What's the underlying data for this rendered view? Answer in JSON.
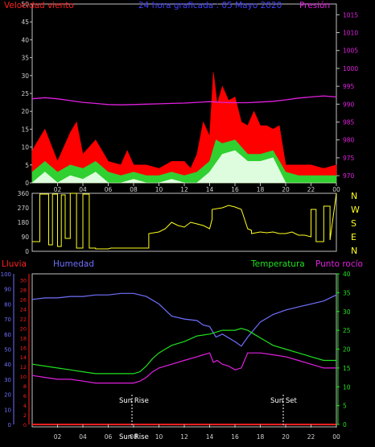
{
  "colors": {
    "wind": "#ff2020",
    "gust": "#ff0000",
    "wind_avg": "#30d030",
    "wind_min": "#e8ffe8",
    "pressure": "#e020e0",
    "direction": "#ffff20",
    "humidity": "#7070ff",
    "temperature": "#20e020",
    "dewpoint": "#e020e0",
    "rain": "#ff2020",
    "axis": "#c0c0c0",
    "tick_text": "#d0d0d0",
    "sun_text": "#ffffff"
  },
  "chart_data": [
    {
      "type": "area",
      "id": "wind_pressure",
      "title": "24 hora graficada : 05 Mayo 2020",
      "left_label": "Velocidad viento",
      "right_label": "Presión",
      "x_ticks": [
        "02",
        "04",
        "06",
        "08",
        "10",
        "12",
        "14",
        "16",
        "18",
        "20",
        "22",
        "00"
      ],
      "left_ticks": [
        "0",
        "5",
        "10",
        "15",
        "20",
        "25",
        "30",
        "35",
        "40",
        "45",
        "50"
      ],
      "right_ticks": [
        "970",
        "975",
        "980",
        "985",
        "990",
        "995",
        "1000",
        "1005",
        "1010",
        "1015"
      ],
      "ylim_left": [
        0,
        50
      ],
      "ylim_right": [
        968,
        1018
      ],
      "series": [
        {
          "key": "gust",
          "x": [
            0,
            1,
            2,
            3,
            3.5,
            4,
            5,
            6,
            7,
            7.5,
            8,
            9,
            10,
            11,
            12,
            12.5,
            13,
            13.5,
            14,
            14.3,
            14.6,
            15,
            15.5,
            16,
            16.5,
            17,
            17.5,
            18,
            18.5,
            19,
            19.5,
            20,
            21,
            22,
            23,
            24
          ],
          "y": [
            9,
            15,
            6,
            14,
            17,
            8,
            12,
            6,
            5,
            9,
            5,
            5,
            4,
            6,
            6,
            4,
            8,
            17,
            13,
            31,
            22,
            27,
            23,
            24,
            17,
            16,
            20,
            16,
            16,
            15,
            16,
            5,
            5,
            5,
            4,
            5
          ]
        },
        {
          "key": "wind_avg",
          "x": [
            0,
            1,
            2,
            3,
            4,
            5,
            6,
            7,
            8,
            9,
            10,
            11,
            12,
            13,
            14,
            14.5,
            15,
            16,
            17,
            18,
            19,
            20,
            21,
            22,
            23,
            24
          ],
          "y": [
            3,
            6,
            3,
            5,
            4,
            6,
            3,
            2,
            3,
            2,
            2,
            3,
            2,
            3,
            6,
            12,
            11,
            12,
            8,
            8,
            9,
            3,
            2,
            2,
            2,
            2
          ]
        },
        {
          "key": "wind_min",
          "x": [
            0,
            1,
            2,
            3,
            4,
            5,
            6,
            7,
            8,
            9,
            10,
            11,
            12,
            13,
            14,
            15,
            16,
            17,
            18,
            19,
            20,
            21,
            22,
            23,
            24
          ],
          "y": [
            0,
            3,
            0,
            2,
            1,
            3,
            0,
            0,
            1,
            0,
            0,
            1,
            0,
            0,
            3,
            8,
            9,
            6,
            6,
            7,
            0,
            0,
            0,
            0,
            0
          ]
        },
        {
          "key": "pressure",
          "axis": "right",
          "x": [
            0,
            1,
            2,
            3,
            4,
            5,
            6,
            7,
            8,
            9,
            10,
            11,
            12,
            13,
            14,
            15,
            16,
            17,
            18,
            19,
            20,
            21,
            22,
            23,
            24
          ],
          "y": [
            991.5,
            991.8,
            991.5,
            991.0,
            990.5,
            990.2,
            989.9,
            989.8,
            989.9,
            990.0,
            990.1,
            990.2,
            990.3,
            990.5,
            990.7,
            990.5,
            990.4,
            990.4,
            990.6,
            990.8,
            991.2,
            991.7,
            992.0,
            992.3,
            992.0
          ]
        }
      ]
    },
    {
      "type": "line",
      "id": "wind_direction",
      "right_labels": [
        "N",
        "W",
        "S",
        "E",
        "N"
      ],
      "left_ticks": [
        "0",
        "90",
        "180",
        "270",
        "360"
      ],
      "ylim": [
        0,
        360
      ],
      "x": [
        0,
        0.6,
        0.6,
        1.3,
        1.3,
        1.6,
        1.6,
        2.0,
        2.0,
        2.3,
        2.3,
        2.6,
        2.6,
        3.0,
        3.0,
        3.5,
        3.5,
        4.0,
        4.0,
        4.5,
        4.5,
        5.0,
        5.0,
        6.0,
        6.0,
        6.2,
        6.2,
        7.0,
        7.0,
        8.0,
        8.0,
        9.2,
        9.2,
        10.0,
        10.5,
        11.0,
        11.5,
        12.0,
        12.5,
        13.0,
        13.5,
        14.0,
        14.2,
        14.2,
        15.0,
        15.5,
        16.0,
        16.5,
        17.0,
        17.3,
        17.3,
        18.0,
        18.5,
        19.0,
        19.5,
        20.0,
        20.5,
        21.0,
        21.5,
        22.0,
        22.0,
        22.4,
        22.4,
        23.0,
        23.0,
        23.5,
        23.5,
        24.0
      ],
      "y": [
        60,
        60,
        355,
        355,
        40,
        40,
        355,
        355,
        30,
        30,
        350,
        350,
        80,
        80,
        360,
        360,
        20,
        20,
        355,
        355,
        20,
        20,
        15,
        15,
        15,
        20,
        20,
        20,
        20,
        20,
        20,
        20,
        110,
        120,
        140,
        180,
        160,
        150,
        180,
        170,
        160,
        140,
        200,
        260,
        270,
        285,
        275,
        260,
        140,
        130,
        110,
        120,
        115,
        120,
        110,
        110,
        120,
        100,
        100,
        90,
        260,
        260,
        60,
        60,
        280,
        280,
        70,
        360
      ]
    },
    {
      "type": "line",
      "id": "temp_humidity",
      "labels": {
        "rain": "Lluvia",
        "humidity": "Humedad",
        "temperature": "Temperatura",
        "dewpoint": "Punto rocío"
      },
      "humidity_ticks": [
        "0",
        "10",
        "20",
        "30",
        "40",
        "50",
        "60",
        "70",
        "80",
        "90",
        "100"
      ],
      "rain_ticks": [
        "0",
        "2",
        "4",
        "6",
        "8",
        "10",
        "12",
        "14",
        "16",
        "18",
        "20",
        "22",
        "24",
        "26",
        "28",
        "30"
      ],
      "temp_ticks": [
        "0",
        "5",
        "10",
        "15",
        "20",
        "25",
        "30",
        "35",
        "40"
      ],
      "ylim_humidity": [
        0,
        100
      ],
      "ylim_temp": [
        0,
        40
      ],
      "annotations": {
        "sunrise": "Sun Rise",
        "sunset": "Sun Set",
        "sunrise_tick": "Sun Rise"
      },
      "x_ticks": [
        "02",
        "04",
        "06",
        "08",
        "10",
        "12",
        "14",
        "16",
        "18",
        "20",
        "22",
        "00"
      ],
      "series": [
        {
          "key": "humidity",
          "axis": "humidity",
          "x": [
            0,
            1,
            2,
            3,
            4,
            5,
            6,
            7,
            8,
            9,
            10,
            11,
            12,
            13,
            13.5,
            14,
            14.5,
            15,
            16,
            16.5,
            17,
            18,
            19,
            20,
            21,
            22,
            23,
            24
          ],
          "y": [
            83,
            84,
            84,
            85,
            85,
            86,
            86,
            87,
            87,
            85,
            80,
            72,
            70,
            69,
            66,
            65,
            58,
            60,
            55,
            52,
            58,
            68,
            73,
            76,
            78,
            80,
            82,
            86
          ]
        },
        {
          "key": "temperature",
          "axis": "temp",
          "x": [
            0,
            1,
            2,
            3,
            4,
            5,
            6,
            7,
            8,
            8.5,
            9,
            9.5,
            10,
            10.5,
            11,
            12,
            13,
            14,
            15,
            16,
            16.5,
            17,
            17.5,
            18,
            18.5,
            19,
            20,
            21,
            22,
            23,
            24
          ],
          "y": [
            16,
            15.5,
            15,
            14.5,
            14,
            13.5,
            13.5,
            13.5,
            13.5,
            14,
            15.5,
            17.5,
            19,
            20,
            21,
            22,
            23.5,
            24,
            25,
            25,
            25.5,
            25,
            24,
            23,
            22,
            21,
            20,
            19,
            18,
            17,
            17
          ]
        },
        {
          "key": "dewpoint",
          "axis": "temp",
          "x": [
            0,
            1,
            2,
            3,
            4,
            5,
            6,
            7,
            8,
            8.5,
            9,
            9.5,
            10,
            11,
            12,
            13,
            13.5,
            14,
            14.3,
            14.6,
            15,
            15.5,
            16,
            16.5,
            17,
            18,
            19,
            20,
            21,
            22,
            23,
            24
          ],
          "y": [
            13,
            12.5,
            12,
            12,
            11.5,
            11,
            11,
            11,
            11,
            11.5,
            12.5,
            14,
            15,
            16,
            17,
            18,
            18.5,
            19,
            16.5,
            17,
            16,
            15.5,
            14.5,
            15,
            19,
            19,
            18.5,
            18,
            17,
            16,
            15,
            15
          ]
        },
        {
          "key": "rain",
          "axis": "humidity",
          "x": [
            0,
            24
          ],
          "y": [
            0,
            0
          ]
        }
      ]
    }
  ]
}
